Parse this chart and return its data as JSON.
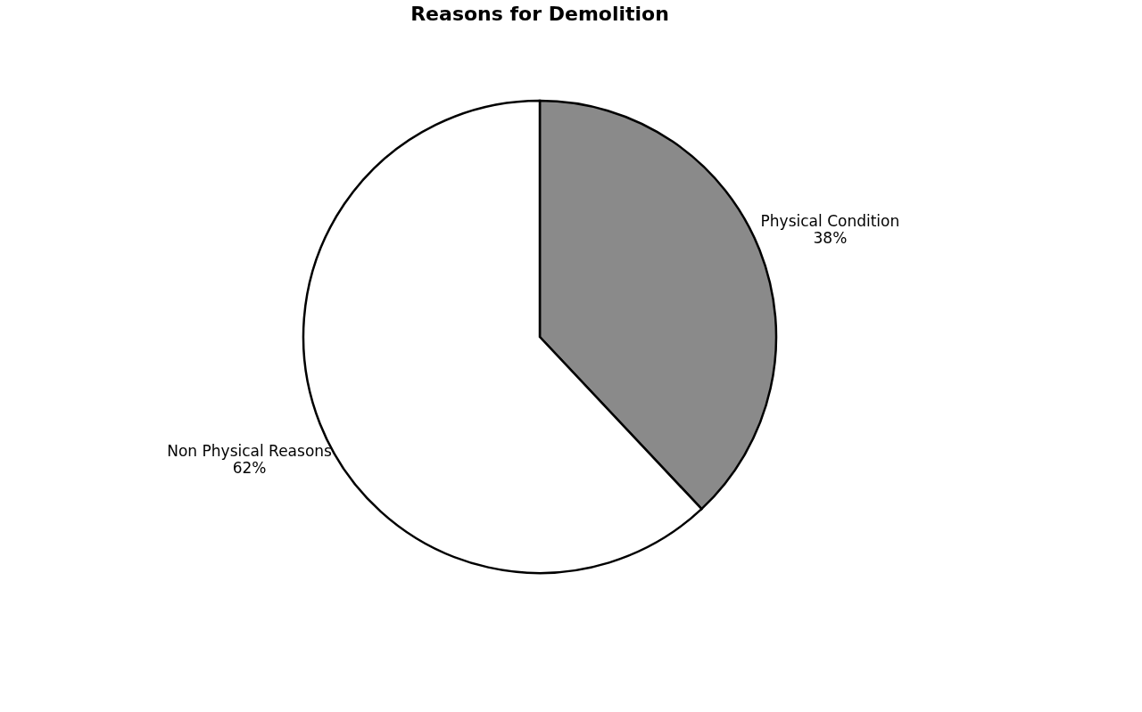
{
  "chart_data": {
    "type": "pie",
    "title": "Reasons for Demolition",
    "categories": [
      "Physical Condition",
      "Non Physical Reasons"
    ],
    "values": [
      38,
      62
    ],
    "value_labels": [
      "38%",
      "62%"
    ],
    "colors": [
      "#8a8a8a",
      "#ffffff"
    ],
    "legend": false
  }
}
